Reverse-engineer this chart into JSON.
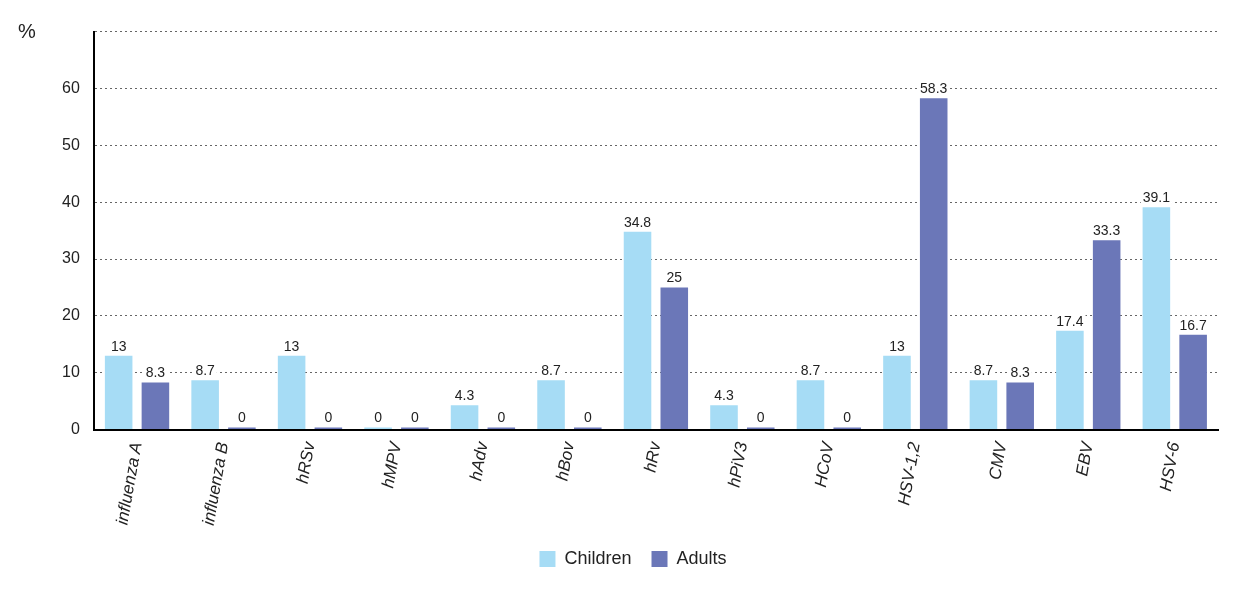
{
  "chart_data": {
    "type": "bar",
    "ylabel": "%",
    "categories": [
      "influenza A",
      "influenza B",
      "hRSv",
      "hMPV",
      "hAdv",
      "hBov",
      "hRv",
      "hPiV3",
      "HCoV",
      "HSV-1,2",
      "CMV",
      "EBV",
      "HSV-6"
    ],
    "series": [
      {
        "name": "Children",
        "color": "#a6dcf5",
        "values": [
          13,
          8.7,
          13,
          0,
          4.3,
          8.7,
          34.8,
          4.3,
          8.7,
          13,
          8.7,
          17.4,
          39.1
        ]
      },
      {
        "name": "Adults",
        "color": "#6b77b8",
        "values": [
          8.3,
          0,
          0,
          0,
          0,
          0,
          25,
          0,
          0,
          58.3,
          8.3,
          33.3,
          16.7
        ]
      }
    ],
    "ylim": [
      0,
      70
    ],
    "yticks": [
      0,
      10,
      20,
      30,
      40,
      50,
      60,
      {
        "value": 70,
        "label": null
      }
    ],
    "grid": "y",
    "legend": "bottom",
    "data_labels": true
  }
}
